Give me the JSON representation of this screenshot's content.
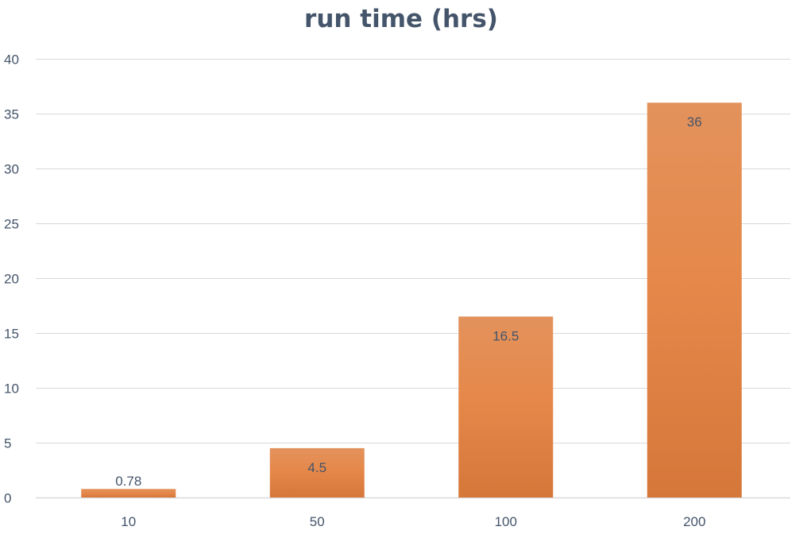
{
  "chart_data": {
    "type": "bar",
    "title": "run time (hrs)",
    "xlabel": "",
    "ylabel": "",
    "categories": [
      "10",
      "50",
      "100",
      "200"
    ],
    "values": [
      0.78,
      4.5,
      16.5,
      36
    ],
    "data_labels": [
      "0.78",
      "4.5",
      "16.5",
      "36"
    ],
    "ylim": [
      0,
      40
    ],
    "yticks": [
      "0",
      "5",
      "10",
      "15",
      "20",
      "25",
      "30",
      "35",
      "40"
    ],
    "grid": true,
    "legend": "none",
    "colors": {
      "bar_top": "#E3925C",
      "bar_bottom": "#D6773A",
      "title": "#44546A",
      "tick_text": "#44546A",
      "label_text": "#44546A",
      "grid": "#D9D9D9"
    }
  }
}
